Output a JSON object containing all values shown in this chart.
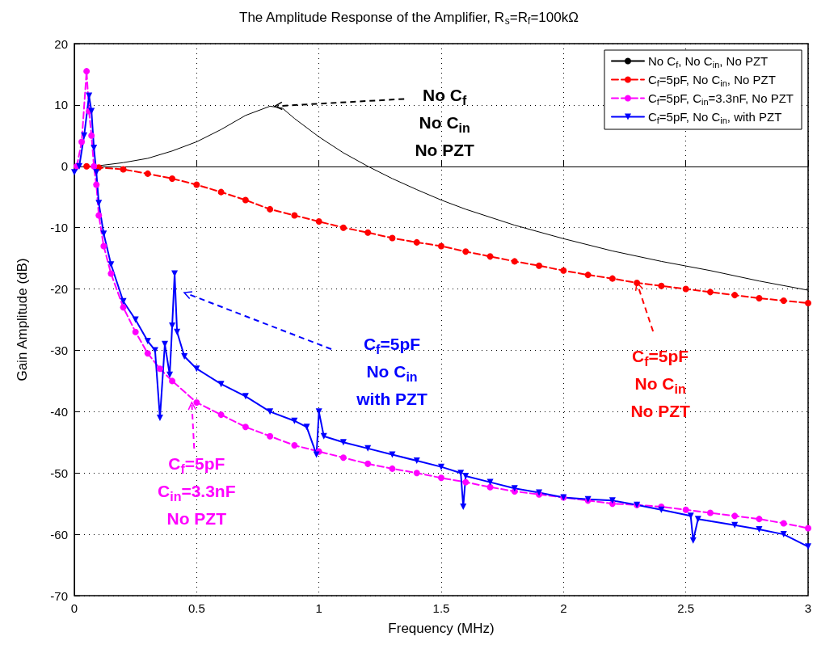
{
  "chart_data": {
    "type": "line",
    "title": "The Amplitude Response of the Amplifier, R$_{s}$=R$_{f}$=100kΩ",
    "xlabel": "Frequency (MHz)",
    "ylabel": "Gain Amplitude (dB)",
    "xlim": [
      0,
      3
    ],
    "xticks": [
      0,
      0.5,
      1,
      1.5,
      2,
      2.5,
      3
    ],
    "ylim": [
      -70,
      20
    ],
    "yticks": [
      -70,
      -60,
      -50,
      -40,
      -30,
      -20,
      -10,
      0,
      10,
      20
    ],
    "grid": true,
    "legend": "top right",
    "series": [
      {
        "name": "No C$_{f}$, No C$_{in}$, No PZT",
        "color": "#000000",
        "marker": "none",
        "line_style": "solid",
        "x": [
          0.05,
          0.1,
          0.2,
          0.3,
          0.4,
          0.5,
          0.6,
          0.7,
          0.8,
          0.85,
          0.9,
          1.0,
          1.1,
          1.2,
          1.3,
          1.4,
          1.5,
          1.6,
          1.8,
          2.0,
          2.2,
          2.4,
          2.6,
          2.8,
          3.0
        ],
        "values": [
          0,
          0.1,
          0.6,
          1.3,
          2.5,
          4,
          6,
          8.3,
          9.8,
          9.5,
          7.8,
          4.8,
          2.2,
          0,
          -2,
          -3.8,
          -5.5,
          -7,
          -9.6,
          -11.8,
          -13.8,
          -15.5,
          -17,
          -18.7,
          -20.2
        ]
      },
      {
        "name": "C$_{f}$=5pF, No C$_{in}$, No PZT",
        "color": "#ff0000",
        "marker": "circle",
        "line_style": "dashed",
        "x": [
          0.05,
          0.1,
          0.2,
          0.3,
          0.4,
          0.5,
          0.6,
          0.7,
          0.8,
          0.9,
          1.0,
          1.1,
          1.2,
          1.3,
          1.4,
          1.5,
          1.6,
          1.7,
          1.8,
          1.9,
          2.0,
          2.1,
          2.2,
          2.3,
          2.4,
          2.5,
          2.6,
          2.7,
          2.8,
          2.9,
          3.0
        ],
        "values": [
          0,
          -0.2,
          -0.5,
          -1.2,
          -2,
          -3,
          -4.2,
          -5.5,
          -7,
          -8,
          -9,
          -10,
          -10.8,
          -11.7,
          -12.4,
          -13,
          -13.9,
          -14.7,
          -15.5,
          -16.2,
          -17,
          -17.7,
          -18.3,
          -19,
          -19.5,
          -20,
          -20.5,
          -21,
          -21.5,
          -21.9,
          -22.3
        ]
      },
      {
        "name": "C$_{f}$=5pF, C$_{in}$=3.3nF, No PZT",
        "color": "#ff00ff",
        "marker": "circle",
        "line_style": "dashed",
        "x": [
          0.01,
          0.03,
          0.05,
          0.06,
          0.07,
          0.08,
          0.09,
          0.1,
          0.12,
          0.15,
          0.2,
          0.25,
          0.3,
          0.35,
          0.4,
          0.5,
          0.6,
          0.7,
          0.8,
          0.9,
          1.0,
          1.1,
          1.2,
          1.3,
          1.4,
          1.5,
          1.6,
          1.7,
          1.8,
          1.9,
          2.0,
          2.1,
          2.2,
          2.3,
          2.4,
          2.5,
          2.6,
          2.7,
          2.8,
          2.9,
          3.0
        ],
        "values": [
          0,
          4,
          15.5,
          9,
          5,
          0,
          -3,
          -8,
          -13,
          -17.5,
          -23,
          -27,
          -30.5,
          -33,
          -35,
          -38.5,
          -40.5,
          -42.5,
          -44,
          -45.5,
          -46.5,
          -47.5,
          -48.5,
          -49.3,
          -50,
          -50.8,
          -51.5,
          -52.3,
          -53,
          -53.5,
          -54,
          -54.5,
          -55,
          -55.2,
          -55.5,
          -56,
          -56.5,
          -57,
          -57.5,
          -58.2,
          -59
        ]
      },
      {
        "name": "C$_{f}$=5pF, No C$_{in}$, with PZT",
        "color": "#0000ff",
        "marker": "triangle",
        "line_style": "solid",
        "x": [
          0.0,
          0.02,
          0.04,
          0.06,
          0.07,
          0.08,
          0.09,
          0.1,
          0.12,
          0.15,
          0.2,
          0.25,
          0.3,
          0.33,
          0.35,
          0.37,
          0.39,
          0.4,
          0.41,
          0.42,
          0.45,
          0.5,
          0.6,
          0.7,
          0.8,
          0.9,
          0.95,
          0.99,
          1.0,
          1.02,
          1.1,
          1.2,
          1.3,
          1.4,
          1.5,
          1.58,
          1.59,
          1.6,
          1.7,
          1.8,
          1.9,
          2.0,
          2.1,
          2.2,
          2.3,
          2.4,
          2.52,
          2.53,
          2.55,
          2.7,
          2.8,
          2.9,
          3.0
        ],
        "values": [
          -1,
          0,
          5,
          11.5,
          9,
          3,
          -1,
          -6,
          -11,
          -16,
          -22,
          -25,
          -28.5,
          -30,
          -41,
          -29,
          -34,
          -26,
          -17.5,
          -27,
          -31,
          -33,
          -35.5,
          -37.5,
          -40,
          -41.5,
          -42.5,
          -47,
          -40,
          -44,
          -45,
          -46,
          -47,
          -48,
          -49,
          -50,
          -55.5,
          -50.5,
          -51.5,
          -52.5,
          -53.2,
          -54,
          -54.3,
          -54.5,
          -55.2,
          -56,
          -57,
          -61,
          -57.5,
          -58.5,
          -59.2,
          -60,
          -62
        ]
      }
    ],
    "annotations": [
      {
        "text": "No C$_{f}$\nNo C$_{in}$\nNo PZT",
        "x": 0.82,
        "y": 9.8
      },
      {
        "text": "C$_{f}$=5pF\nNo C$_{in}$\nNo PZT",
        "x": 2.3,
        "y": -19
      },
      {
        "text": "C$_{f}$=5pF\nC$_{in}$=3.3nF\nNo PZT",
        "x": 0.48,
        "y": -38.5
      },
      "C$_{f}$=5pF\nNo C$_{in}$\nwith PZT"
    ]
  }
}
